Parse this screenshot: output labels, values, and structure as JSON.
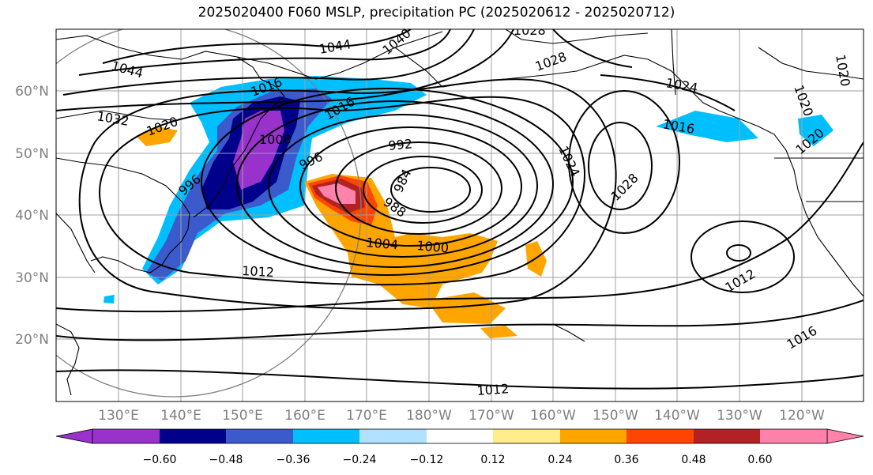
{
  "title": "2025020400 F060 MSLP, precipitation PC (2025020612 - 2025020712)",
  "map": {
    "projection": "PlateCarree, central longitude 180",
    "lat_range": [
      "10°N",
      "70°N"
    ],
    "lon_range": [
      "120°E",
      "110°W"
    ],
    "lat_ticks": [
      "20°N",
      "30°N",
      "40°N",
      "50°N",
      "60°N"
    ],
    "lon_ticks": [
      "130°E",
      "140°E",
      "150°E",
      "160°E",
      "170°E",
      "180°W",
      "170°W",
      "160°W",
      "150°W",
      "140°W",
      "130°W",
      "120°W"
    ],
    "grid": true,
    "isobar_labels": [
      "1044",
      "1044",
      "1040",
      "1028",
      "1028",
      "1024",
      "1016",
      "1016",
      "1016",
      "1032",
      "1020",
      "1020",
      "1008",
      "992",
      "996",
      "996",
      "984",
      "988",
      "1004",
      "1000",
      "1012",
      "1012",
      "1016",
      "1012",
      "1024",
      "1028",
      "1020",
      "1020"
    ],
    "colors": {
      "isobar": "#000000",
      "grid": "#a0a0a0",
      "coastline": "#000000"
    }
  },
  "colorbar": {
    "ticks": [
      "−0.60",
      "−0.48",
      "−0.36",
      "−0.24",
      "−0.12",
      "0.12",
      "0.24",
      "0.36",
      "0.48",
      "0.60"
    ],
    "colors": [
      "#9932cc",
      "#00008b",
      "#3b5bcc",
      "#00bfff",
      "#b0e2ff",
      "#ffffff",
      "#ffec8b",
      "#ffa500",
      "#ff4500",
      "#b22222",
      "#ff82ab"
    ],
    "extend": "both"
  }
}
